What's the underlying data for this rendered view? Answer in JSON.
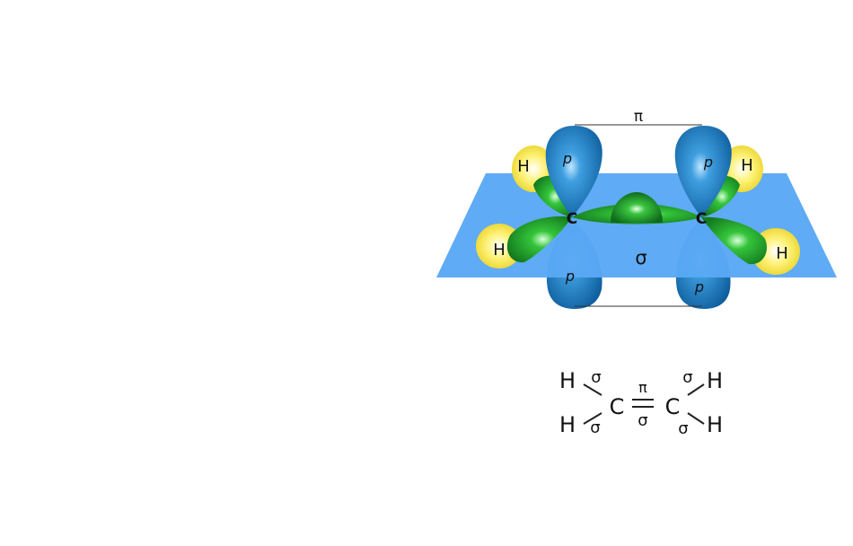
{
  "figure": {
    "atoms": {
      "carbon_left": "C",
      "carbon_right": "C",
      "hydrogen_top_left": "H",
      "hydrogen_bottom_left": "H",
      "hydrogen_top_right": "H",
      "hydrogen_bottom_right": "H"
    },
    "orbitals": {
      "p_upper_left": "p",
      "p_upper_right": "p",
      "p_lower_left": "p",
      "p_lower_right": "p"
    },
    "bonds": {
      "pi_label": "π",
      "sigma_plane_label": "σ"
    }
  },
  "formula": {
    "h_top_left": "H",
    "h_bottom_left": "H",
    "h_top_right": "H",
    "h_bottom_right": "H",
    "c_left": "C",
    "c_right": "C",
    "sigma_top_left": "σ",
    "sigma_bottom_left": "σ",
    "sigma_top_right": "σ",
    "sigma_bottom_right": "σ",
    "pi_center": "π",
    "sigma_center": "σ"
  },
  "colors": {
    "plane": "#5aa8f5",
    "p_orbital": "#1e7fc4",
    "sp2_lobe": "#1fa032",
    "h_orbital": "#f5e63a"
  }
}
